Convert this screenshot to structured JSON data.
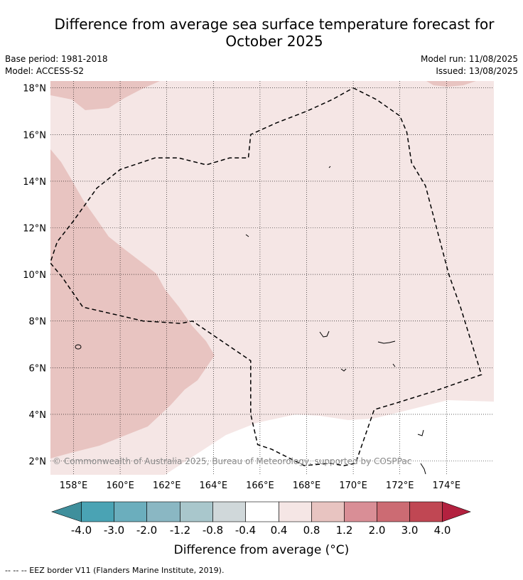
{
  "title_line1": "Difference from average sea surface temperature forecast for",
  "title_line2": "October 2025",
  "meta": {
    "base_period": "Base period: 1981-2018",
    "model": "Model: ACCESS-S2",
    "model_run": "Model run: 11/08/2025",
    "issued": "Issued: 13/08/2025"
  },
  "credit": "© Commonwealth of Australia 2025, Bureau of Meteorology, supported by COSPPac",
  "colorbar": {
    "title": "Difference from average (°C)",
    "tick_labels": [
      "-4.0",
      "-3.0",
      "-2.0",
      "-1.2",
      "-0.8",
      "-0.4",
      "0.4",
      "0.8",
      "1.2",
      "2.0",
      "3.0",
      "4.0"
    ],
    "colors": [
      "#3f8f9c",
      "#4aa3b4",
      "#6baebd",
      "#8ab7c3",
      "#a9c7cc",
      "#d0d8da",
      "#ffffff",
      "#f5e6e5",
      "#e8c4c1",
      "#d98e96",
      "#cc6b73",
      "#c04753",
      "#b3213f"
    ]
  },
  "footnote": "-- -- -- EEZ border V11 (Flanders Marine Institute, 2019).",
  "chart_data": {
    "type": "heatmap",
    "title": "Difference from average sea surface temperature forecast for October 2025",
    "xlabel": "",
    "ylabel": "",
    "xlim": [
      157,
      176
    ],
    "ylim": [
      1.5,
      18.3
    ],
    "x_ticks": [
      158,
      160,
      162,
      164,
      166,
      168,
      170,
      172,
      174
    ],
    "x_tick_labels": [
      "158°E",
      "160°E",
      "162°E",
      "164°E",
      "166°E",
      "168°E",
      "170°E",
      "172°E",
      "174°E"
    ],
    "y_ticks": [
      2,
      4,
      6,
      8,
      10,
      12,
      14,
      16,
      18
    ],
    "y_tick_labels": [
      "2°N",
      "4°N",
      "6°N",
      "8°N",
      "10°N",
      "12°N",
      "14°N",
      "16°N",
      "18°N"
    ],
    "grid": true,
    "regions": [
      {
        "category": "0.4 to 0.8",
        "color": "#f5e6e5",
        "extent": "most of the domain"
      },
      {
        "category": "0.8 to 1.2",
        "color": "#e8c4c1",
        "extent": "western area west of about 164°E, and top-left corner near 17-18°N"
      },
      {
        "category": "-0.4 to 0.4",
        "color": "#ffffff",
        "extent": "south-east area below about 5°N"
      }
    ],
    "eez_border": {
      "style": "dashed",
      "lonlat": [
        [
          170,
          18
        ],
        [
          171,
          17.5
        ],
        [
          172,
          16.8
        ],
        [
          172.3,
          16.1
        ],
        [
          172.5,
          14.8
        ],
        [
          173.1,
          13.8
        ],
        [
          173.6,
          11.9
        ],
        [
          174.1,
          10
        ],
        [
          174.6,
          8.6
        ],
        [
          175.5,
          5.7
        ],
        [
          173.5,
          5
        ],
        [
          171.9,
          4.5
        ],
        [
          170.9,
          4.2
        ],
        [
          170.1,
          1.9
        ],
        [
          169.6,
          1.8
        ],
        [
          169,
          1.9
        ],
        [
          167.9,
          1.8
        ],
        [
          166.5,
          2.5
        ],
        [
          165.9,
          2.7
        ],
        [
          165.6,
          4
        ],
        [
          165.6,
          6.3
        ],
        [
          163.1,
          8
        ],
        [
          162.6,
          7.9
        ],
        [
          161,
          8
        ],
        [
          158.4,
          8.6
        ],
        [
          157.5,
          9.9
        ],
        [
          157,
          10.5
        ],
        [
          157.3,
          11.4
        ],
        [
          158,
          12.3
        ],
        [
          159,
          13.7
        ],
        [
          160,
          14.5
        ],
        [
          161.5,
          15
        ],
        [
          162.5,
          15
        ],
        [
          163.7,
          14.7
        ],
        [
          164.7,
          15
        ],
        [
          165.5,
          15
        ],
        [
          165.6,
          16
        ],
        [
          166.7,
          16.5
        ],
        [
          168,
          17
        ],
        [
          169.1,
          17.5
        ],
        [
          170,
          18
        ]
      ]
    }
  }
}
